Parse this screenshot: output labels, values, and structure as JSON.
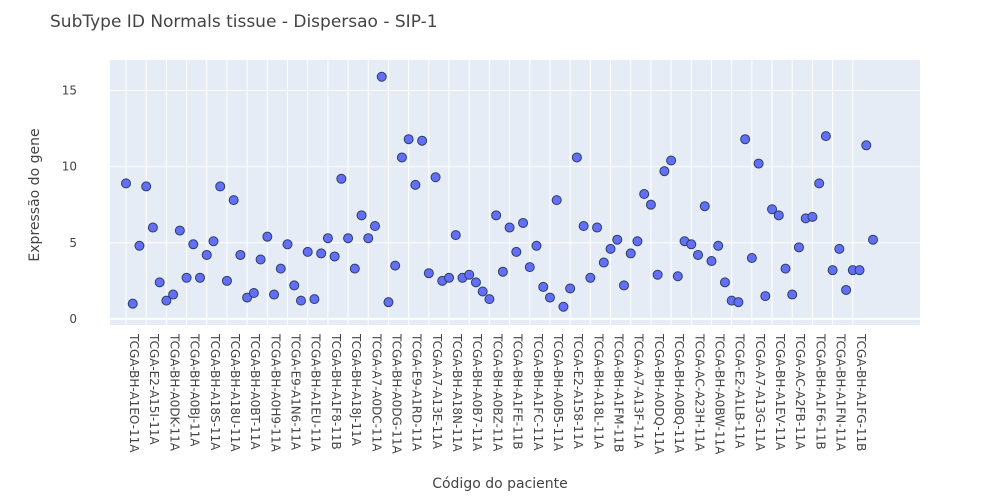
{
  "chart_data": {
    "type": "scatter",
    "title": "SubType ID Normals tissue - Dispersao - SIP-1",
    "xlabel": "Código do paciente",
    "ylabel": "Expressão do gene",
    "ylim": [
      -0.4,
      17
    ],
    "yticks": [
      0,
      5,
      10,
      15
    ],
    "grid": true,
    "x_tick_labels": [
      "TCGA-BH-A1EO-11A",
      "TCGA-E2-A15I-11A",
      "TCGA-BH-A0DK-11A",
      "TCGA-BH-A0BJ-11A",
      "TCGA-BH-A18S-11A",
      "TCGA-BH-A18U-11A",
      "TCGA-BH-A0BT-11A",
      "TCGA-BH-A0H9-11A",
      "TCGA-E9-A1N6-11A",
      "TCGA-BH-A1EU-11A",
      "TCGA-BH-A1F8-11B",
      "TCGA-BH-A18J-11A",
      "TCGA-A7-A0DC-11A",
      "TCGA-BH-A0DG-11A",
      "TCGA-E9-A1RD-11A",
      "TCGA-A7-A13E-11A",
      "TCGA-BH-A18N-11A",
      "TCGA-BH-A0B7-11A",
      "TCGA-BH-A0BZ-11A",
      "TCGA-BH-A1FE-11B",
      "TCGA-BH-A1FC-11A",
      "TCGA-BH-A0B5-11A",
      "TCGA-E2-A158-11A",
      "TCGA-BH-A18L-11A",
      "TCGA-BH-A1FM-11B",
      "TCGA-A7-A13F-11A",
      "TCGA-BH-A0DQ-11A",
      "TCGA-BH-A0BQ-11A",
      "TCGA-AC-A23H-11A",
      "TCGA-BH-A0BW-11A",
      "TCGA-E2-A1LB-11A",
      "TCGA-A7-A13G-11A",
      "TCGA-BH-A1EV-11A",
      "TCGA-AC-A2FB-11A",
      "TCGA-BH-A1F6-11B",
      "TCGA-BH-A1FN-11A",
      "TCGA-BH-A1FG-11B"
    ],
    "y": [
      8.9,
      1.0,
      4.8,
      8.7,
      6.0,
      2.4,
      1.2,
      1.6,
      5.8,
      2.7,
      4.9,
      2.7,
      4.2,
      5.1,
      8.7,
      2.5,
      7.8,
      4.2,
      1.4,
      1.7,
      3.9,
      5.4,
      1.6,
      3.3,
      4.9,
      2.2,
      1.2,
      4.4,
      1.3,
      4.3,
      5.3,
      4.1,
      9.2,
      5.3,
      3.3,
      6.8,
      5.3,
      6.1,
      15.9,
      1.1,
      3.5,
      10.6,
      11.8,
      8.8,
      11.7,
      3.0,
      9.3,
      2.5,
      2.7,
      5.5,
      2.7,
      2.9,
      2.4,
      1.8,
      1.3,
      6.8,
      3.1,
      6.0,
      4.4,
      6.3,
      3.4,
      4.8,
      2.1,
      1.4,
      7.8,
      0.8,
      2.0,
      10.6,
      6.1,
      2.7,
      6.0,
      3.7,
      4.6,
      5.2,
      2.2,
      4.3,
      5.1,
      8.2,
      7.5,
      2.9,
      9.7,
      10.4,
      2.8,
      5.1,
      4.9,
      4.2,
      7.4,
      3.8,
      4.8,
      2.4,
      1.2,
      1.1,
      11.8,
      4.0,
      10.2,
      1.5,
      7.2,
      6.8,
      3.3,
      1.6,
      4.7,
      6.6,
      6.7,
      8.9,
      12.0,
      3.2,
      4.6,
      1.9,
      3.2,
      3.2,
      11.4,
      5.2
    ],
    "marker_color": "#636efa"
  },
  "colors": {
    "plot_bg": "#e5ecf6",
    "grid": "#ffffff",
    "marker": "#636efa",
    "marker_edge": "#2a3f5f",
    "text": "#444444"
  }
}
